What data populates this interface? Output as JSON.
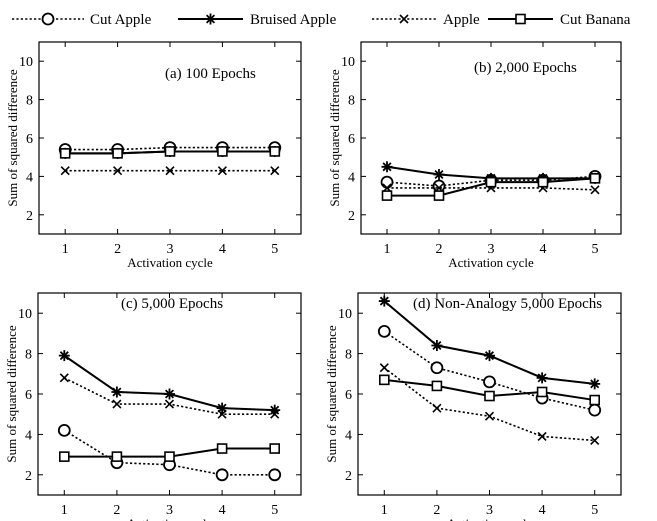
{
  "legend": [
    {
      "name": "Cut Apple",
      "marker": "circle",
      "dash": "dotted"
    },
    {
      "name": "Bruised Apple",
      "marker": "star",
      "dash": "solid"
    },
    {
      "name": "Apple",
      "marker": "x",
      "dash": "dotted"
    },
    {
      "name": "Cut Banana",
      "marker": "square",
      "dash": "solid"
    }
  ],
  "chart_data": [
    {
      "type": "line",
      "title": "(a) 100 Epochs",
      "xlabel": "Activation cycle",
      "ylabel": "Sum of squared difference",
      "x": [
        1,
        2,
        3,
        4,
        5
      ],
      "xlim": [
        0.5,
        5.5
      ],
      "ylim": [
        1,
        11
      ],
      "yticks": [
        2,
        4,
        6,
        8,
        10
      ],
      "grid": false,
      "series": [
        {
          "name": "Cut Apple",
          "values": [
            5.4,
            5.4,
            5.5,
            5.5,
            5.5
          ]
        },
        {
          "name": "Bruised Apple",
          "values": [
            5.2,
            5.2,
            5.3,
            5.3,
            5.3
          ]
        },
        {
          "name": "Apple",
          "values": [
            4.3,
            4.3,
            4.3,
            4.3,
            4.3
          ]
        },
        {
          "name": "Cut Banana",
          "values": [
            5.2,
            5.2,
            5.3,
            5.3,
            5.3
          ]
        }
      ]
    },
    {
      "type": "line",
      "title": "(b) 2,000 Epochs",
      "xlabel": "Activation cycle",
      "ylabel": "Sum of squared difference",
      "x": [
        1,
        2,
        3,
        4,
        5
      ],
      "xlim": [
        0.5,
        5.5
      ],
      "ylim": [
        1,
        11
      ],
      "yticks": [
        2,
        4,
        6,
        8,
        10
      ],
      "grid": false,
      "series": [
        {
          "name": "Cut Apple",
          "values": [
            3.7,
            3.5,
            3.8,
            3.8,
            4.0
          ]
        },
        {
          "name": "Bruised Apple",
          "values": [
            4.5,
            4.1,
            3.9,
            3.9,
            3.9
          ]
        },
        {
          "name": "Apple",
          "values": [
            3.4,
            3.4,
            3.4,
            3.4,
            3.3
          ]
        },
        {
          "name": "Cut Banana",
          "values": [
            3.0,
            3.0,
            3.7,
            3.7,
            3.9
          ]
        }
      ]
    },
    {
      "type": "line",
      "title": "(c) 5,000 Epochs",
      "xlabel": "Activation cycle",
      "ylabel": "Sum of squared difference",
      "x": [
        1,
        2,
        3,
        4,
        5
      ],
      "xlim": [
        0.5,
        5.5
      ],
      "ylim": [
        1,
        11
      ],
      "yticks": [
        2,
        4,
        6,
        8,
        10
      ],
      "grid": false,
      "series": [
        {
          "name": "Cut Apple",
          "values": [
            4.2,
            2.6,
            2.5,
            2.0,
            2.0
          ]
        },
        {
          "name": "Bruised Apple",
          "values": [
            7.9,
            6.1,
            6.0,
            5.3,
            5.2
          ]
        },
        {
          "name": "Apple",
          "values": [
            6.8,
            5.5,
            5.5,
            5.0,
            5.0
          ]
        },
        {
          "name": "Cut Banana",
          "values": [
            2.9,
            2.9,
            2.9,
            3.3,
            3.3
          ]
        }
      ]
    },
    {
      "type": "line",
      "title": "(d) Non-Analogy 5,000 Epochs",
      "xlabel": "Activation cycle",
      "ylabel": "Sum of squared difference",
      "x": [
        1,
        2,
        3,
        4,
        5
      ],
      "xlim": [
        0.5,
        5.5
      ],
      "ylim": [
        1,
        11
      ],
      "yticks": [
        2,
        4,
        6,
        8,
        10
      ],
      "grid": false,
      "series": [
        {
          "name": "Cut Apple",
          "values": [
            9.1,
            7.3,
            6.6,
            5.8,
            5.2
          ]
        },
        {
          "name": "Bruised Apple",
          "values": [
            10.6,
            8.4,
            7.9,
            6.8,
            6.5
          ]
        },
        {
          "name": "Apple",
          "values": [
            7.3,
            5.3,
            4.9,
            3.9,
            3.7
          ]
        },
        {
          "name": "Cut Banana",
          "values": [
            6.7,
            6.4,
            5.9,
            6.1,
            5.7
          ]
        }
      ]
    }
  ]
}
